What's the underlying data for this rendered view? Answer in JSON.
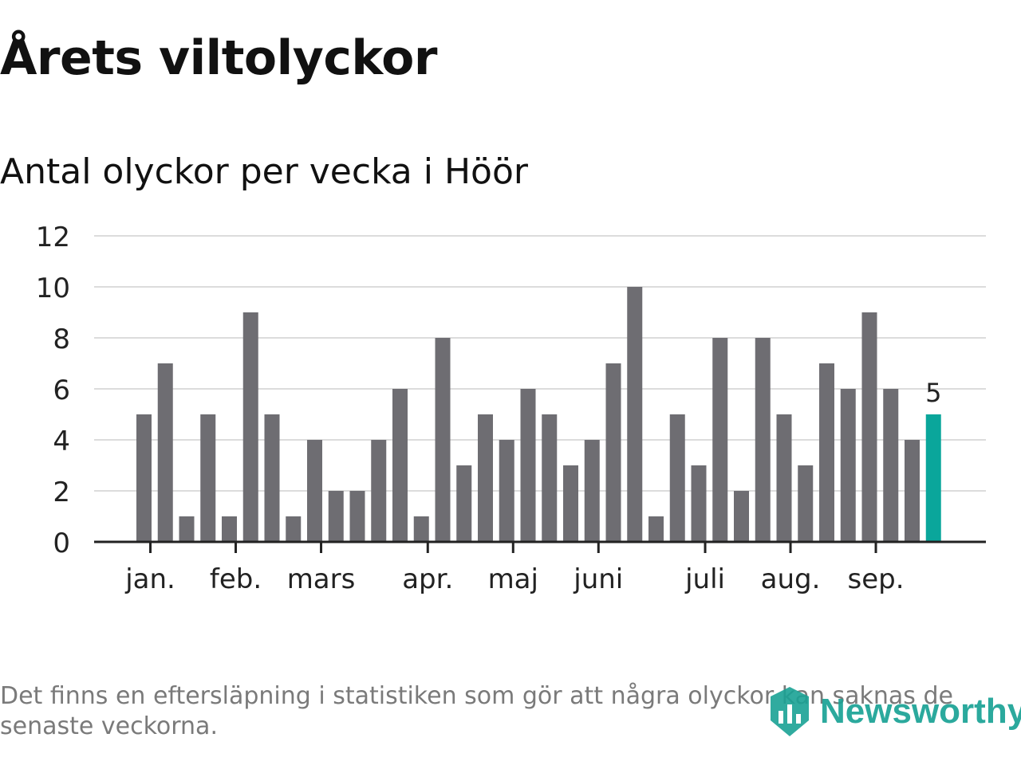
{
  "header": {
    "title": "Årets viltolyckor",
    "subtitle": "Antal olyckor per vecka i Höör"
  },
  "colors": {
    "bar": "#6e6d72",
    "highlight": "#0aa69b",
    "grid": "#dcdcdc",
    "axis": "#222222",
    "brand": "#1aa295"
  },
  "chart_data": {
    "type": "bar",
    "ylim": [
      0,
      12
    ],
    "yticks": [
      "0",
      "2",
      "4",
      "6",
      "8",
      "10",
      "12"
    ],
    "values": [
      5,
      7,
      1,
      5,
      1,
      9,
      5,
      1,
      4,
      2,
      2,
      4,
      6,
      1,
      8,
      3,
      5,
      4,
      6,
      5,
      3,
      4,
      7,
      10,
      1,
      5,
      3,
      8,
      2,
      8,
      5,
      3,
      7,
      6,
      9,
      6,
      4,
      5
    ],
    "highlight_index": 37,
    "highlight_label": "5",
    "month_labels": [
      "jan.",
      "feb.",
      "mars",
      "apr.",
      "maj",
      "juni",
      "juli",
      "aug.",
      "sep."
    ],
    "month_positions": [
      0.3,
      4.3,
      8.3,
      13.3,
      17.3,
      21.3,
      26.3,
      30.3,
      34.3
    ],
    "grid": true,
    "xlabel": "",
    "ylabel": ""
  },
  "footnote": "Det finns en eftersläpning i statistiken som gör att några olyckor kan saknas de senaste veckorna.",
  "brand": {
    "name": "Newsworthy",
    "icon": "newsworthy-logo-icon"
  }
}
